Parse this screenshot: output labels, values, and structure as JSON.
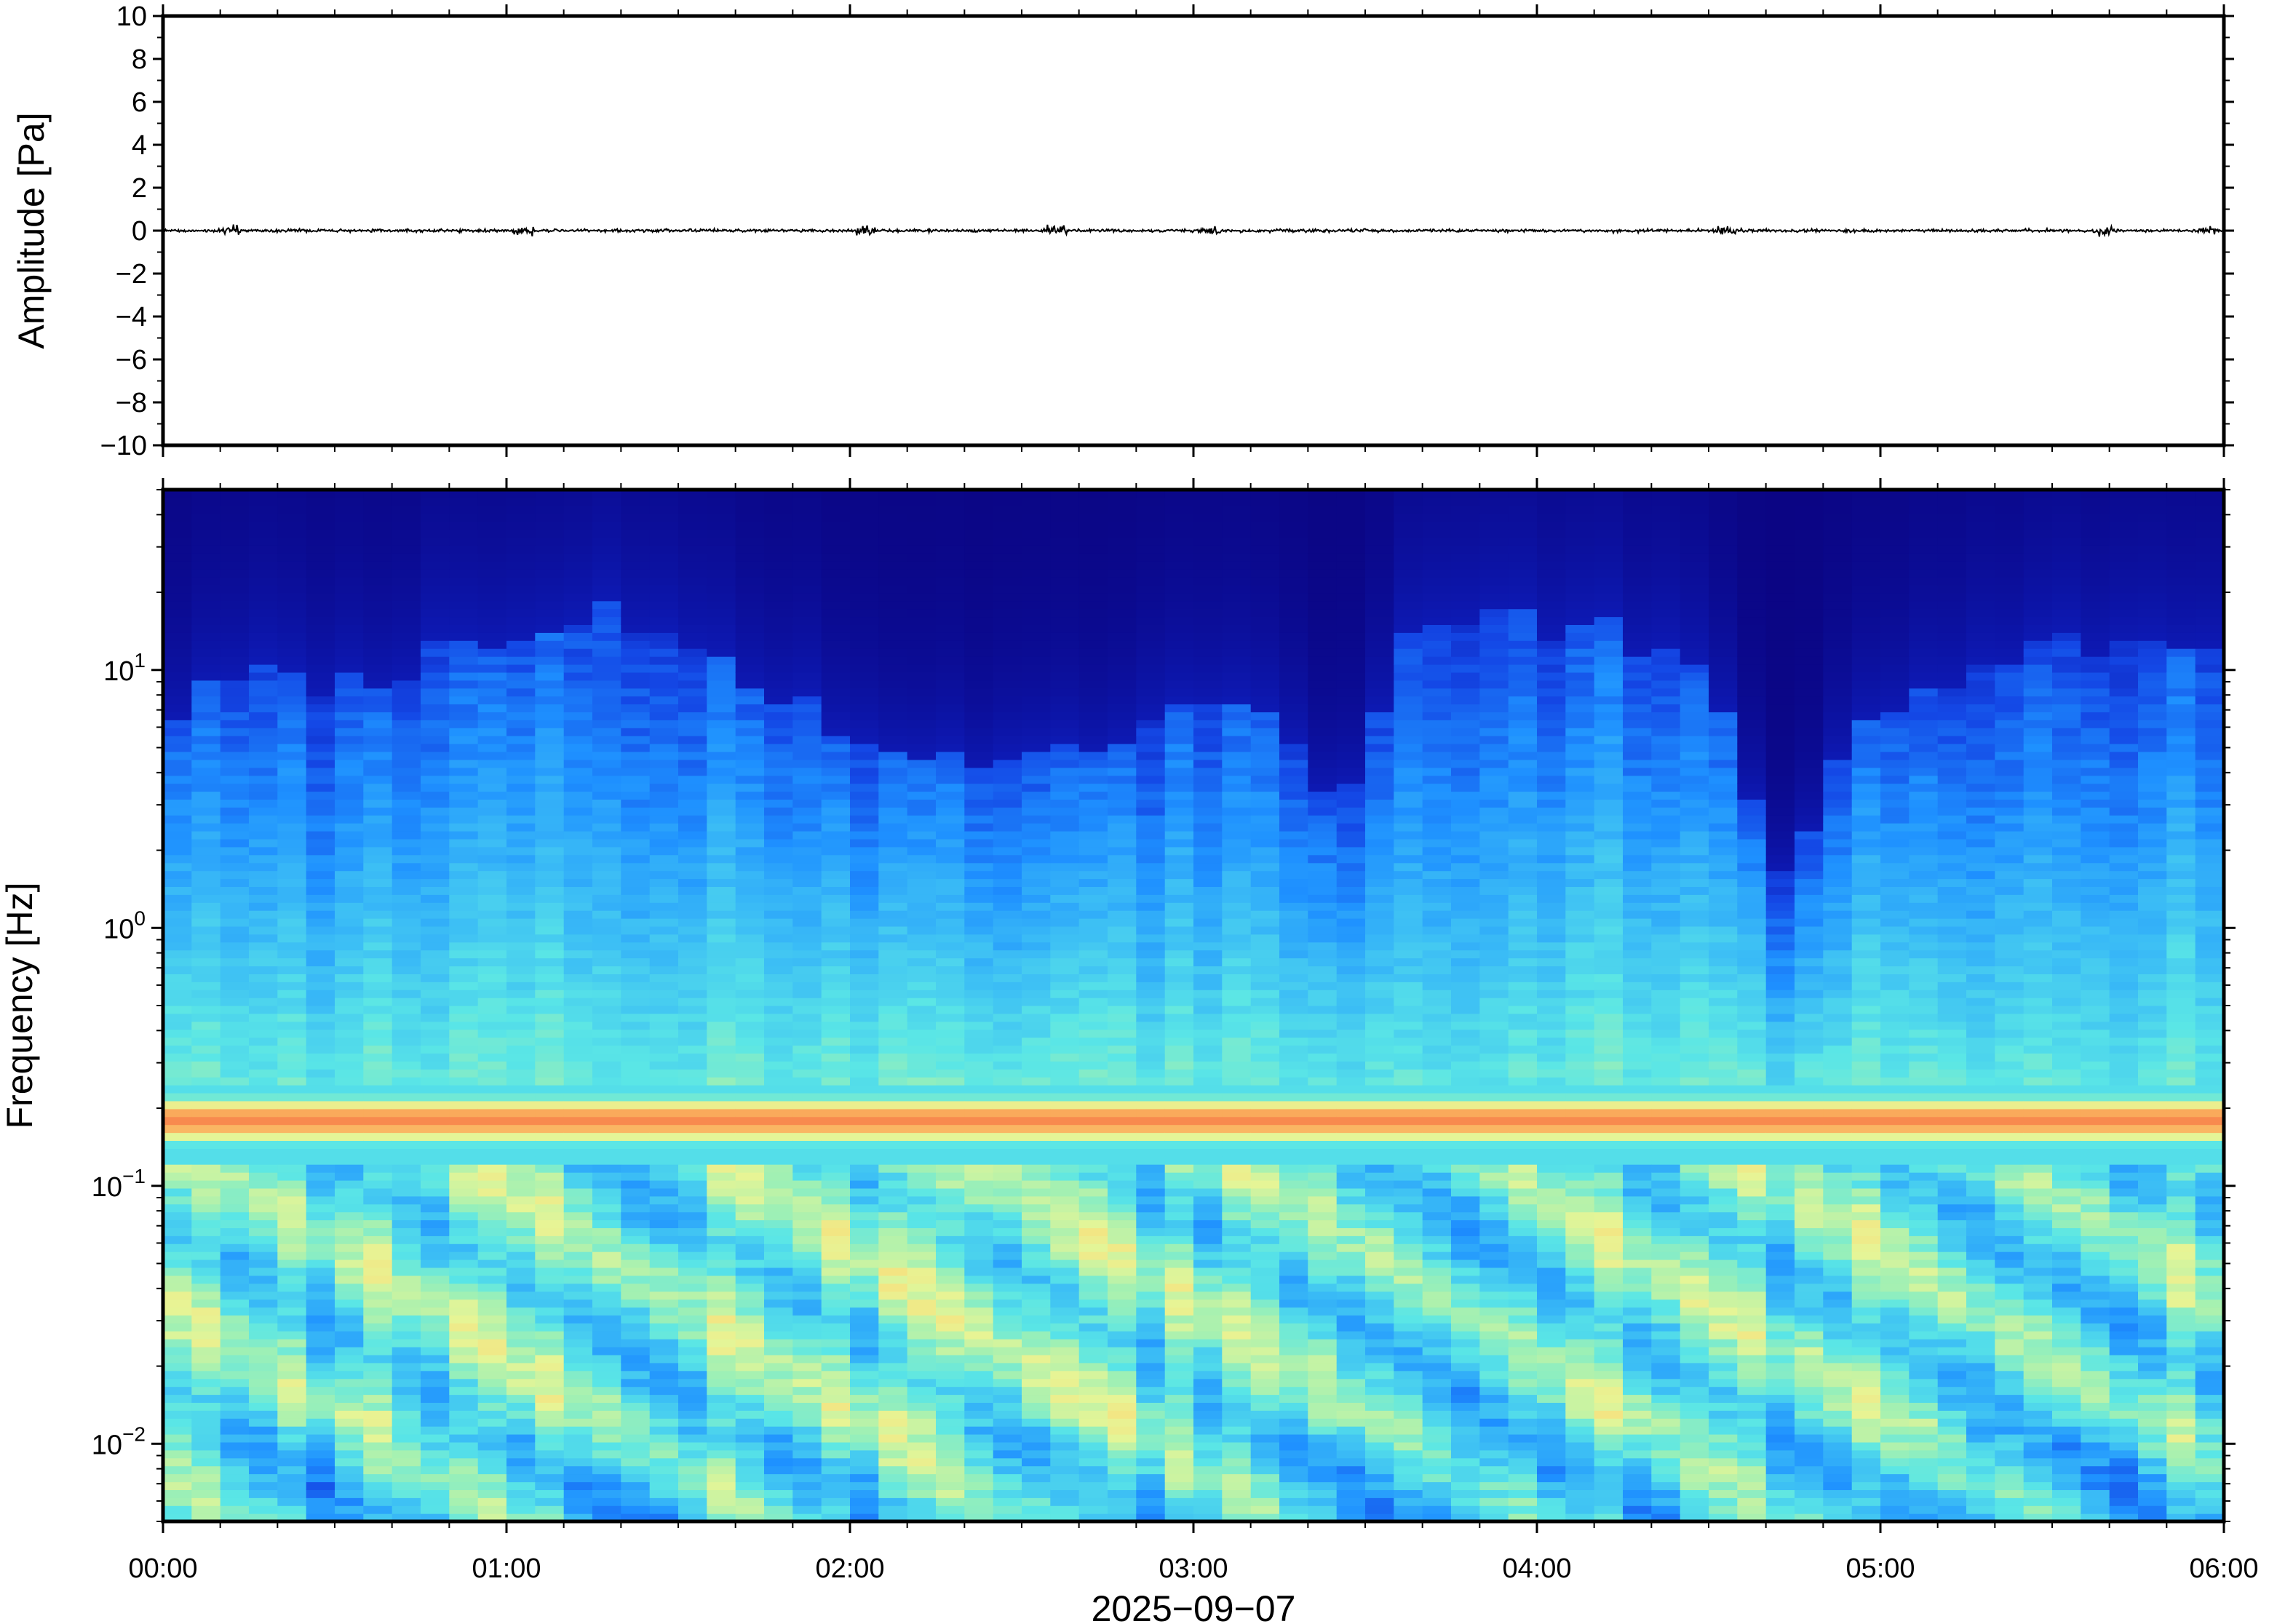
{
  "chart_data": [
    {
      "type": "line",
      "panel": "waveform",
      "ylabel": "Amplitude [Pa]",
      "ylim": [
        -10,
        10
      ],
      "yticks": [
        10,
        8,
        6,
        4,
        2,
        0,
        -2,
        -4,
        -6,
        -8,
        -10
      ],
      "ytick_labels": [
        "10",
        "8",
        "6",
        "4",
        "2",
        "0",
        "−2",
        "−4",
        "−6",
        "−8",
        "−10"
      ],
      "xlim_hours": [
        0,
        6
      ],
      "series": [
        {
          "color": "#000000",
          "description_level": "noise trace centred on 0 Pa",
          "peak_amplitude_pa": 0.3,
          "bursts_at_hours": [
            0.2,
            1.05,
            2.05,
            2.6,
            3.05,
            4.55,
            5.65,
            5.95
          ],
          "burst_amplitude_pa": 0.45
        }
      ]
    },
    {
      "type": "heatmap",
      "panel": "spectrogram",
      "ylabel": "Frequency [Hz]",
      "yscale": "log",
      "ylim": [
        0.005,
        50
      ],
      "yticks": [
        {
          "value": 10,
          "base": "10",
          "exp": "1"
        },
        {
          "value": 1,
          "base": "10",
          "exp": "0"
        },
        {
          "value": 0.1,
          "base": "10",
          "exp": "−1"
        },
        {
          "value": 0.01,
          "base": "10",
          "exp": "−2"
        }
      ],
      "xlim_hours": [
        0,
        6
      ],
      "colormap": [
        "#0a0078",
        "#0d1ab4",
        "#1448e6",
        "#1e90ff",
        "#3cbef5",
        "#5ae6e6",
        "#9ff0b4",
        "#e6f596",
        "#fadc78",
        "#fa9650",
        "#f05a46"
      ],
      "microseism_peak_hz": 0.18,
      "column_upper_extent_hz": [
        [
          0.0,
          7
        ],
        [
          0.3,
          10
        ],
        [
          0.5,
          8
        ],
        [
          0.8,
          12
        ],
        [
          1.0,
          15
        ],
        [
          1.3,
          18
        ],
        [
          1.6,
          12
        ],
        [
          1.9,
          7
        ],
        [
          2.2,
          5
        ],
        [
          2.5,
          4
        ],
        [
          2.8,
          6
        ],
        [
          3.1,
          8
        ],
        [
          3.3,
          5
        ],
        [
          3.45,
          3
        ],
        [
          3.6,
          12
        ],
        [
          3.9,
          16
        ],
        [
          4.2,
          14
        ],
        [
          4.5,
          9
        ],
        [
          4.72,
          1.4
        ],
        [
          4.9,
          5
        ],
        [
          5.2,
          9
        ],
        [
          5.5,
          12
        ],
        [
          5.8,
          15
        ],
        [
          6.0,
          12
        ]
      ]
    }
  ],
  "xaxis": {
    "tick_labels": [
      "00:00",
      "01:00",
      "02:00",
      "03:00",
      "04:00",
      "05:00",
      "06:00"
    ],
    "date_label": "2025−09−07"
  }
}
